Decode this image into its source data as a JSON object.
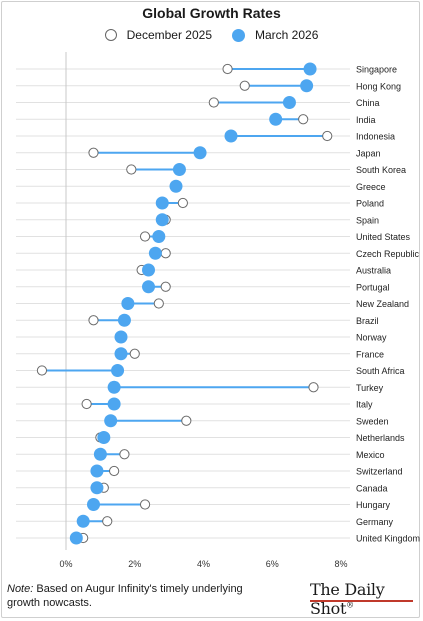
{
  "chart_data": {
    "type": "scatter",
    "title": "Global Growth Rates",
    "legend_position": "top",
    "series": [
      {
        "name": "December 2025",
        "marker": "open-circle",
        "color": "#ffffff"
      },
      {
        "name": "March 2026",
        "marker": "filled-circle",
        "color": "#4da6f0"
      }
    ],
    "xlim": [
      -1,
      8
    ],
    "x_ticks": [
      "0%",
      "2%",
      "4%",
      "6%",
      "8%"
    ],
    "x_tick_values": [
      0,
      2,
      4,
      6,
      8
    ],
    "grid": "horizontal",
    "categories": [
      "Singapore",
      "Hong Kong",
      "China",
      "India",
      "Indonesia",
      "Japan",
      "South Korea",
      "Greece",
      "Poland",
      "Spain",
      "United States",
      "Czech Republic",
      "Australia",
      "Portugal",
      "New Zealand",
      "Brazil",
      "Norway",
      "France",
      "South Africa",
      "Turkey",
      "Italy",
      "Sweden",
      "Netherlands",
      "Mexico",
      "Switzerland",
      "Canada",
      "Hungary",
      "Germany",
      "United Kingdom"
    ],
    "december_2025": [
      4.7,
      5.2,
      4.3,
      6.9,
      7.6,
      0.8,
      1.9,
      3.2,
      3.4,
      2.9,
      2.3,
      2.9,
      2.2,
      2.9,
      2.7,
      0.8,
      1.6,
      2.0,
      -0.7,
      7.2,
      0.6,
      3.5,
      1.0,
      1.7,
      1.4,
      1.1,
      2.3,
      1.2,
      0.5
    ],
    "march_2026": [
      7.1,
      7.0,
      6.5,
      6.1,
      4.8,
      3.9,
      3.3,
      3.2,
      2.8,
      2.8,
      2.7,
      2.6,
      2.4,
      2.4,
      1.8,
      1.7,
      1.6,
      1.6,
      1.5,
      1.4,
      1.4,
      1.3,
      1.1,
      1.0,
      0.9,
      0.9,
      0.8,
      0.5,
      0.3
    ]
  },
  "footer": {
    "note_label": "Note:",
    "note_text": " Based on Augur Infinity's timely underlying growth nowcasts.",
    "brand": "The Daily Shot",
    "brand_mark": "®"
  },
  "colors": {
    "filled": "#4da6f0",
    "connector": "#4da6f0",
    "open_stroke": "#6b6b6b",
    "grid": "#e1e1e1",
    "zero_line": "#c8c8c8",
    "brand_accent": "#c0392b"
  }
}
